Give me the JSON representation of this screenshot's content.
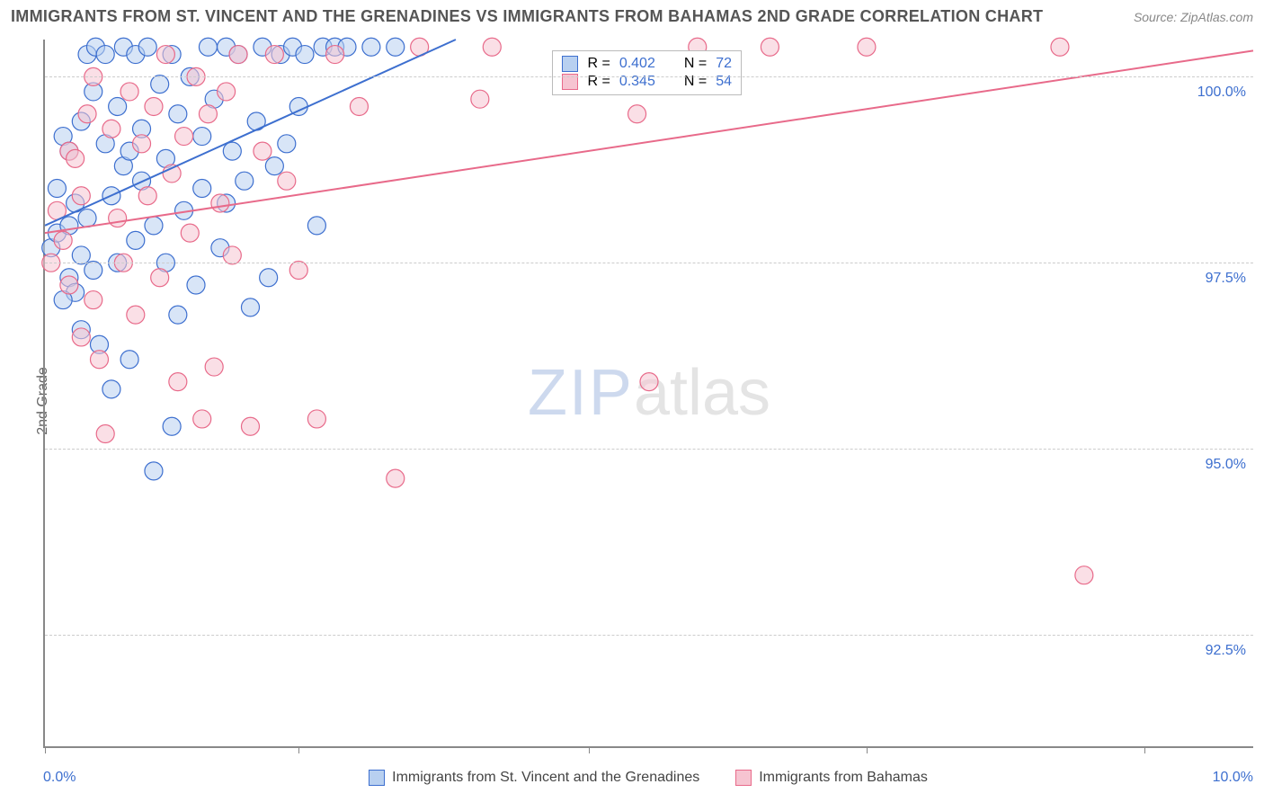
{
  "title": "IMMIGRANTS FROM ST. VINCENT AND THE GRENADINES VS IMMIGRANTS FROM BAHAMAS 2ND GRADE CORRELATION CHART",
  "source": "Source: ZipAtlas.com",
  "y_label": "2nd Grade",
  "watermark_a": "ZIP",
  "watermark_b": "atlas",
  "chart": {
    "type": "scatter",
    "xlim": [
      0.0,
      10.0
    ],
    "ylim": [
      91.0,
      100.5
    ],
    "x_min_label": "0.0%",
    "x_max_label": "10.0%",
    "y_ticks": [
      92.5,
      95.0,
      97.5,
      100.0
    ],
    "y_tick_labels": [
      "92.5%",
      "95.0%",
      "97.5%",
      "100.0%"
    ],
    "x_tick_positions": [
      0.0,
      2.1,
      4.5,
      6.8,
      9.1
    ],
    "grid_color": "#cccccc",
    "axis_color": "#888888",
    "background_color": "#ffffff",
    "marker_radius": 10,
    "marker_stroke_width": 1.2,
    "line_width": 2,
    "series": [
      {
        "name": "Immigrants from St. Vincent and the Grenadines",
        "colors": {
          "stroke": "#3d6fcf",
          "fill": "#b8d0f0",
          "fill_opacity": 0.55
        },
        "R": "0.402",
        "N": "72",
        "trend": {
          "x1": 0.0,
          "y1": 98.0,
          "x2": 3.4,
          "y2": 100.5
        },
        "points": [
          [
            0.05,
            97.7
          ],
          [
            0.1,
            97.9
          ],
          [
            0.1,
            98.5
          ],
          [
            0.15,
            99.2
          ],
          [
            0.2,
            97.3
          ],
          [
            0.2,
            98.0
          ],
          [
            0.2,
            99.0
          ],
          [
            0.25,
            97.1
          ],
          [
            0.25,
            98.3
          ],
          [
            0.3,
            96.6
          ],
          [
            0.3,
            97.6
          ],
          [
            0.3,
            99.4
          ],
          [
            0.35,
            100.3
          ],
          [
            0.35,
            98.1
          ],
          [
            0.4,
            99.8
          ],
          [
            0.4,
            97.4
          ],
          [
            0.42,
            100.4
          ],
          [
            0.45,
            96.4
          ],
          [
            0.5,
            99.1
          ],
          [
            0.5,
            100.3
          ],
          [
            0.55,
            98.4
          ],
          [
            0.6,
            97.5
          ],
          [
            0.6,
            99.6
          ],
          [
            0.65,
            100.4
          ],
          [
            0.65,
            98.8
          ],
          [
            0.7,
            99.0
          ],
          [
            0.7,
            96.2
          ],
          [
            0.75,
            100.3
          ],
          [
            0.75,
            97.8
          ],
          [
            0.8,
            98.6
          ],
          [
            0.8,
            99.3
          ],
          [
            0.85,
            100.4
          ],
          [
            0.9,
            94.7
          ],
          [
            0.9,
            98.0
          ],
          [
            0.95,
            99.9
          ],
          [
            1.0,
            98.9
          ],
          [
            1.0,
            97.5
          ],
          [
            1.05,
            100.3
          ],
          [
            1.1,
            96.8
          ],
          [
            1.1,
            99.5
          ],
          [
            1.15,
            98.2
          ],
          [
            1.2,
            100.0
          ],
          [
            1.25,
            97.2
          ],
          [
            1.3,
            99.2
          ],
          [
            1.3,
            98.5
          ],
          [
            1.35,
            100.4
          ],
          [
            1.4,
            99.7
          ],
          [
            1.45,
            97.7
          ],
          [
            1.5,
            100.4
          ],
          [
            1.5,
            98.3
          ],
          [
            1.55,
            99.0
          ],
          [
            1.6,
            100.3
          ],
          [
            1.65,
            98.6
          ],
          [
            1.7,
            96.9
          ],
          [
            1.75,
            99.4
          ],
          [
            1.8,
            100.4
          ],
          [
            1.85,
            97.3
          ],
          [
            1.9,
            98.8
          ],
          [
            1.95,
            100.3
          ],
          [
            2.0,
            99.1
          ],
          [
            2.05,
            100.4
          ],
          [
            2.1,
            99.6
          ],
          [
            2.15,
            100.3
          ],
          [
            2.25,
            98.0
          ],
          [
            2.3,
            100.4
          ],
          [
            2.4,
            100.4
          ],
          [
            2.5,
            100.4
          ],
          [
            2.7,
            100.4
          ],
          [
            2.9,
            100.4
          ],
          [
            0.55,
            95.8
          ],
          [
            1.05,
            95.3
          ],
          [
            0.15,
            97.0
          ]
        ]
      },
      {
        "name": "Immigrants from Bahamas",
        "colors": {
          "stroke": "#e86a8a",
          "fill": "#f6c4d1",
          "fill_opacity": 0.55
        },
        "R": "0.345",
        "N": "54",
        "trend": {
          "x1": 0.0,
          "y1": 97.9,
          "x2": 10.0,
          "y2": 100.35
        },
        "points": [
          [
            0.05,
            97.5
          ],
          [
            0.1,
            98.2
          ],
          [
            0.15,
            97.8
          ],
          [
            0.2,
            99.0
          ],
          [
            0.2,
            97.2
          ],
          [
            0.25,
            98.9
          ],
          [
            0.3,
            96.5
          ],
          [
            0.3,
            98.4
          ],
          [
            0.35,
            99.5
          ],
          [
            0.4,
            97.0
          ],
          [
            0.4,
            100.0
          ],
          [
            0.45,
            96.2
          ],
          [
            0.5,
            95.2
          ],
          [
            0.55,
            99.3
          ],
          [
            0.6,
            98.1
          ],
          [
            0.65,
            97.5
          ],
          [
            0.7,
            99.8
          ],
          [
            0.75,
            96.8
          ],
          [
            0.8,
            99.1
          ],
          [
            0.85,
            98.4
          ],
          [
            0.9,
            99.6
          ],
          [
            0.95,
            97.3
          ],
          [
            1.0,
            100.3
          ],
          [
            1.05,
            98.7
          ],
          [
            1.1,
            95.9
          ],
          [
            1.15,
            99.2
          ],
          [
            1.2,
            97.9
          ],
          [
            1.25,
            100.0
          ],
          [
            1.3,
            95.4
          ],
          [
            1.35,
            99.5
          ],
          [
            1.4,
            96.1
          ],
          [
            1.45,
            98.3
          ],
          [
            1.5,
            99.8
          ],
          [
            1.55,
            97.6
          ],
          [
            1.6,
            100.3
          ],
          [
            1.7,
            95.3
          ],
          [
            1.8,
            99.0
          ],
          [
            1.9,
            100.3
          ],
          [
            2.0,
            98.6
          ],
          [
            2.1,
            97.4
          ],
          [
            2.25,
            95.4
          ],
          [
            2.4,
            100.3
          ],
          [
            2.6,
            99.6
          ],
          [
            2.9,
            94.6
          ],
          [
            3.1,
            100.4
          ],
          [
            3.6,
            99.7
          ],
          [
            3.7,
            100.4
          ],
          [
            4.9,
            99.5
          ],
          [
            5.0,
            95.9
          ],
          [
            5.4,
            100.4
          ],
          [
            6.0,
            100.4
          ],
          [
            6.8,
            100.4
          ],
          [
            8.4,
            100.4
          ],
          [
            8.6,
            93.3
          ]
        ]
      }
    ]
  },
  "legend_labels": {
    "series1": "Immigrants from St. Vincent and the Grenadines",
    "series2": "Immigrants from Bahamas"
  },
  "stats_labels": {
    "R": "R =",
    "N": "N ="
  }
}
